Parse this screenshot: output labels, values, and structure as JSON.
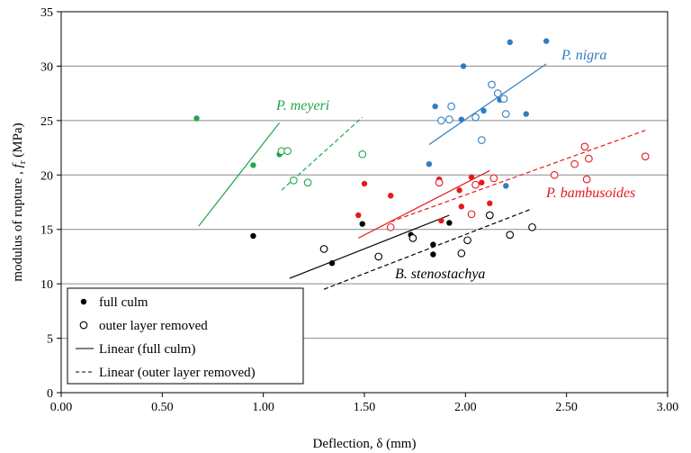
{
  "chart_data": {
    "type": "scatter",
    "xlabel": "Deflection,  δ (mm)",
    "ylabel": "modulus of rupture , f_r (MPa)",
    "ylabel_parts": {
      "pre": "modulus of rupture , ",
      "sym": "f",
      "sub": "r",
      "post": " (MPa)"
    },
    "xlim": [
      0,
      3
    ],
    "ylim": [
      0,
      35
    ],
    "x_ticks": [
      0,
      0.5,
      1,
      1.5,
      2,
      2.5,
      3
    ],
    "x_tick_labels": [
      "0.00",
      "0.50",
      "1.00",
      "1.50",
      "2.00",
      "2.50",
      "3.00"
    ],
    "y_ticks": [
      0,
      5,
      10,
      15,
      20,
      25,
      30,
      35
    ],
    "y_tick_labels": [
      "0",
      "5",
      "10",
      "15",
      "20",
      "25",
      "30",
      "35"
    ],
    "grid": "horizontal",
    "legend_position": "bottom-left",
    "legend": {
      "full": "full culm",
      "outer": "outer layer removed",
      "lin_full": "Linear (full culm)",
      "lin_outer": "Linear (outer layer removed)"
    },
    "series": [
      {
        "name": "P. nigra",
        "color": "#2f7ec1",
        "full": [
          [
            1.85,
            26.3
          ],
          [
            1.98,
            25.1
          ],
          [
            1.99,
            30.0
          ],
          [
            2.09,
            25.9
          ],
          [
            2.17,
            26.9
          ],
          [
            2.22,
            32.2
          ],
          [
            2.4,
            32.3
          ],
          [
            2.3,
            25.6
          ],
          [
            1.82,
            21.0
          ],
          [
            2.2,
            19.0
          ]
        ],
        "outer": [
          [
            1.88,
            25.0
          ],
          [
            1.92,
            25.1
          ],
          [
            1.93,
            26.3
          ],
          [
            2.05,
            25.3
          ],
          [
            2.13,
            28.3
          ],
          [
            2.16,
            27.5
          ],
          [
            2.19,
            27.0
          ],
          [
            2.2,
            25.6
          ],
          [
            2.08,
            23.2
          ]
        ],
        "fit_full": [
          [
            1.82,
            22.8
          ],
          [
            2.4,
            30.2
          ]
        ],
        "fit_outer": null
      },
      {
        "name": "P. bambusoides",
        "color": "#e41a1c",
        "full": [
          [
            1.47,
            16.3
          ],
          [
            1.5,
            19.2
          ],
          [
            1.63,
            18.1
          ],
          [
            1.87,
            19.6
          ],
          [
            1.88,
            15.8
          ],
          [
            1.97,
            18.6
          ],
          [
            1.98,
            17.1
          ],
          [
            2.03,
            19.8
          ],
          [
            2.08,
            19.3
          ],
          [
            2.12,
            17.4
          ]
        ],
        "outer": [
          [
            1.63,
            15.2
          ],
          [
            1.87,
            19.3
          ],
          [
            2.03,
            16.4
          ],
          [
            2.05,
            19.1
          ],
          [
            2.14,
            19.7
          ],
          [
            2.44,
            20.0
          ],
          [
            2.54,
            21.0
          ],
          [
            2.59,
            22.6
          ],
          [
            2.6,
            19.6
          ],
          [
            2.61,
            21.5
          ],
          [
            2.89,
            21.7
          ]
        ],
        "fit_full": [
          [
            1.47,
            14.2
          ],
          [
            2.12,
            20.4
          ]
        ],
        "fit_outer": [
          [
            1.63,
            15.7
          ],
          [
            2.89,
            24.1
          ]
        ]
      },
      {
        "name": "P. meyeri",
        "color": "#1ea64b",
        "full": [
          [
            0.67,
            25.2
          ],
          [
            0.95,
            20.9
          ],
          [
            1.08,
            21.9
          ],
          [
            1.09,
            22.1
          ]
        ],
        "outer": [
          [
            1.09,
            22.2
          ],
          [
            1.12,
            22.2
          ],
          [
            1.15,
            19.5
          ],
          [
            1.22,
            19.3
          ],
          [
            1.49,
            21.9
          ]
        ],
        "fit_full": [
          [
            0.68,
            15.3
          ],
          [
            1.08,
            24.8
          ]
        ],
        "fit_outer": [
          [
            1.09,
            18.6
          ],
          [
            1.49,
            25.3
          ]
        ]
      },
      {
        "name": "B. stenostachya",
        "color": "#000000",
        "full": [
          [
            0.95,
            14.4
          ],
          [
            1.34,
            11.9
          ],
          [
            1.49,
            15.5
          ],
          [
            1.73,
            14.5
          ],
          [
            1.84,
            13.6
          ],
          [
            1.84,
            12.7
          ],
          [
            1.92,
            15.6
          ]
        ],
        "outer": [
          [
            1.3,
            13.2
          ],
          [
            1.57,
            12.5
          ],
          [
            1.74,
            14.2
          ],
          [
            1.98,
            12.8
          ],
          [
            2.01,
            14.0
          ],
          [
            2.12,
            16.3
          ],
          [
            2.22,
            14.5
          ],
          [
            2.33,
            15.2
          ]
        ],
        "fit_full": [
          [
            1.13,
            10.5
          ],
          [
            1.92,
            16.3
          ]
        ],
        "fit_outer": [
          [
            1.3,
            9.5
          ],
          [
            2.33,
            16.9
          ]
        ]
      }
    ],
    "annotations": [
      {
        "text": "P. nigra",
        "series": "P. nigra"
      },
      {
        "text": "P. meyeri",
        "series": "P. meyeri"
      },
      {
        "text": "P. bambusoides",
        "series": "P. bambusoides"
      },
      {
        "text": "B. stenostachya",
        "series": "B. stenostachya"
      }
    ]
  }
}
